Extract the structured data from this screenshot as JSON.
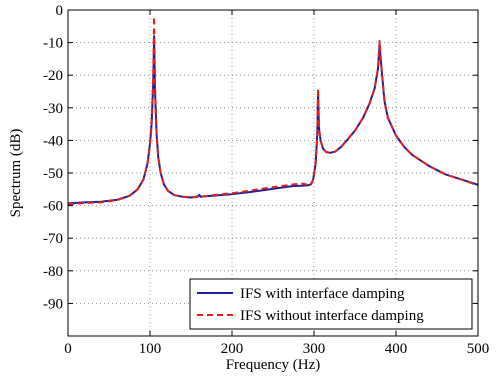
{
  "chart_data": {
    "type": "line",
    "xlabel": "Frequency (Hz)",
    "ylabel": "Spectrum (dB)",
    "xlim": [
      0,
      500
    ],
    "ylim": [
      -100,
      0
    ],
    "x_ticks": [
      0,
      100,
      200,
      300,
      400,
      500
    ],
    "y_ticks": [
      0,
      -10,
      -20,
      -30,
      -40,
      -50,
      -60,
      -70,
      -80,
      -90
    ],
    "grid": true,
    "legend_position": "bottom-right",
    "series": [
      {
        "name": "IFS with interface damping",
        "color": "#1f1f9e",
        "style": "solid",
        "x": [
          0,
          20,
          40,
          60,
          75,
          85,
          92,
          97,
          100,
          102,
          104,
          105,
          106,
          108,
          110,
          113,
          117,
          122,
          130,
          140,
          150,
          158,
          160,
          162,
          170,
          180,
          200,
          220,
          240,
          260,
          275,
          285,
          292,
          296,
          299,
          302,
          304,
          305,
          306,
          308,
          311,
          315,
          320,
          326,
          333,
          340,
          350,
          360,
          368,
          374,
          378,
          380,
          382,
          386,
          390,
          400,
          410,
          420,
          440,
          460,
          480,
          500
        ],
        "y": [
          -59.3,
          -59.0,
          -58.8,
          -58.2,
          -57,
          -55,
          -52,
          -47,
          -41,
          -35,
          -22,
          -8,
          -24,
          -38,
          -45,
          -50,
          -53.5,
          -55.5,
          -56.8,
          -57.3,
          -57.5,
          -57.2,
          -56.7,
          -57.3,
          -57.1,
          -56.9,
          -56.5,
          -55.9,
          -55.2,
          -54.5,
          -54.0,
          -53.9,
          -53.8,
          -53.5,
          -52,
          -47,
          -38,
          -25,
          -36,
          -40,
          -42.5,
          -43.6,
          -43.8,
          -43.4,
          -42,
          -40,
          -37,
          -33,
          -28.5,
          -24,
          -18,
          -10.5,
          -17,
          -28,
          -33,
          -38.5,
          -42,
          -44.5,
          -47.8,
          -50.4,
          -52,
          -53.6
        ]
      },
      {
        "name": "IFS without interface damping",
        "color": "#e0201c",
        "style": "dashed",
        "x": [
          0,
          20,
          40,
          60,
          75,
          85,
          92,
          97,
          100,
          102,
          104,
          105,
          106,
          108,
          110,
          113,
          117,
          122,
          130,
          140,
          150,
          160,
          170,
          180,
          200,
          220,
          240,
          260,
          275,
          285,
          292,
          296,
          299,
          302,
          304,
          305,
          306,
          308,
          311,
          315,
          320,
          326,
          333,
          340,
          350,
          360,
          368,
          374,
          378,
          380,
          382,
          386,
          390,
          400,
          410,
          420,
          440,
          460,
          480,
          500
        ],
        "y": [
          -59.6,
          -59.2,
          -59.0,
          -58.3,
          -57,
          -55,
          -52,
          -47,
          -41,
          -34,
          -20,
          -2,
          -22,
          -38,
          -45,
          -50,
          -53.5,
          -55.5,
          -56.8,
          -57.3,
          -57.5,
          -57.3,
          -57.0,
          -56.7,
          -56.2,
          -55.5,
          -54.7,
          -54.0,
          -53.5,
          -53.2,
          -53.6,
          -53.8,
          -52,
          -47,
          -38,
          -24,
          -36,
          -40,
          -42.5,
          -43.6,
          -43.8,
          -43.4,
          -42,
          -40,
          -37,
          -33,
          -28.5,
          -24,
          -18,
          -9.5,
          -17,
          -28,
          -33,
          -38.5,
          -42,
          -44.5,
          -47.8,
          -50.4,
          -52,
          -53.8
        ]
      }
    ]
  }
}
